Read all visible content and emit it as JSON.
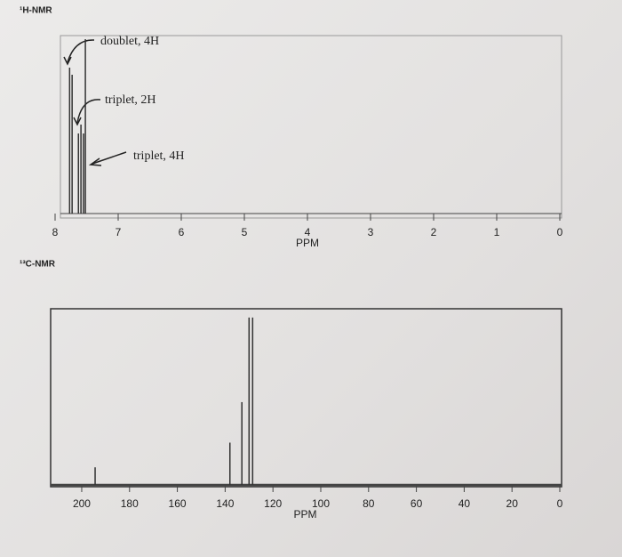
{
  "chart_data": [
    {
      "type": "stem",
      "title": "¹H-NMR",
      "xlabel": "PPM",
      "xlim": [
        8,
        0
      ],
      "xticks": [
        8,
        7,
        6,
        5,
        4,
        3,
        2,
        1,
        0
      ],
      "ylim": [
        0,
        100
      ],
      "x": [
        7.77,
        7.73,
        7.63,
        7.59,
        7.55,
        7.52
      ],
      "values": [
        82,
        78,
        45,
        50,
        45,
        98
      ],
      "color": "#333333",
      "annotations": [
        "doublet, 4H",
        "triplet, 2H",
        "triplet, 4H"
      ]
    },
    {
      "type": "stem",
      "title": "¹³C-NMR",
      "xlabel": "PPM",
      "xlim": [
        213,
        0
      ],
      "xticks": [
        200,
        180,
        160,
        140,
        120,
        100,
        80,
        60,
        40,
        20,
        0
      ],
      "ylim": [
        0,
        100
      ],
      "x": [
        194.4,
        138,
        133,
        130,
        128.5
      ],
      "values": [
        10,
        24,
        47,
        95,
        95
      ],
      "color": "#333333"
    }
  ]
}
